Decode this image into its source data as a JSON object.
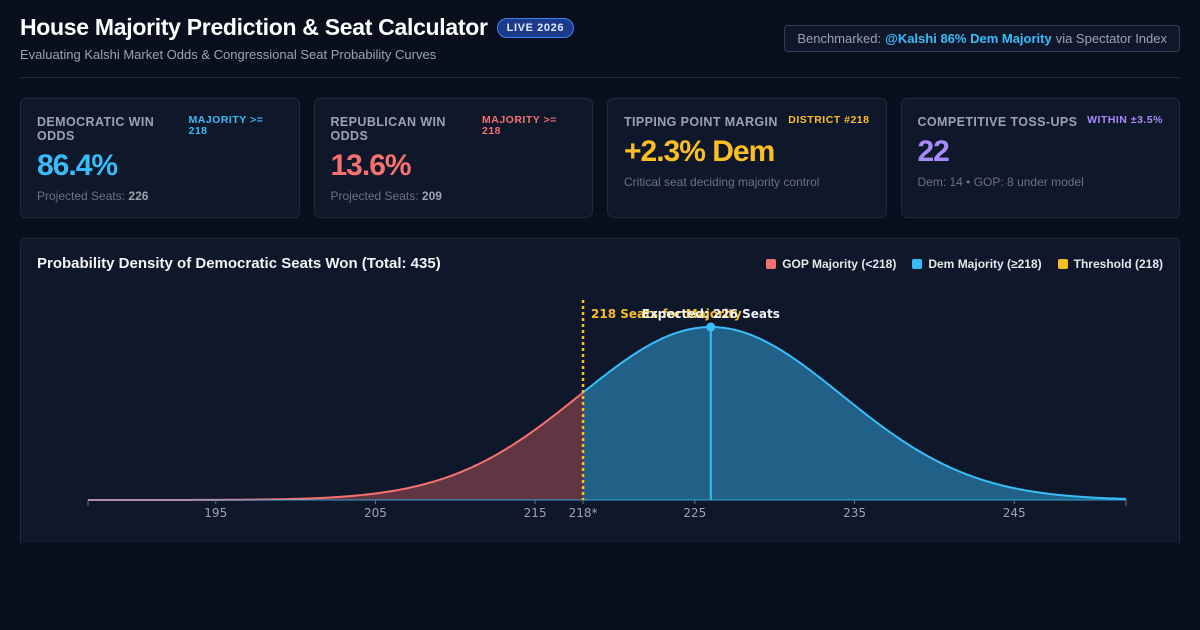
{
  "header": {
    "title": "House Majority Prediction & Seat Calculator",
    "live_badge": "LIVE 2026",
    "subtitle": "Evaluating Kalshi Market Odds & Congressional Seat Probability Curves",
    "benchmark_prefix": "Benchmarked:",
    "benchmark_highlight": "@Kalshi 86% Dem Majority",
    "benchmark_suffix": "via Spectator Index"
  },
  "cards": [
    {
      "label": "DEMOCRATIC WIN ODDS",
      "badge": "MAJORITY >= 218",
      "value": "86.4%",
      "note_label": "Projected Seats:",
      "note_value": "226",
      "color": "#38bdf8"
    },
    {
      "label": "REPUBLICAN WIN ODDS",
      "badge": "MAJORITY >= 218",
      "value": "13.6%",
      "note_label": "Projected Seats:",
      "note_value": "209",
      "color": "#f87171"
    },
    {
      "label": "TIPPING POINT MARGIN",
      "badge": "DISTRICT #218",
      "value": "+2.3% Dem",
      "note_label": "Critical seat deciding majority control",
      "color": "#fbbf24"
    },
    {
      "label": "COMPETITIVE TOSS-UPS",
      "badge": "WITHIN ±3.5%",
      "value": "22",
      "note_label": "Dem: 14 • GOP: 8 under model",
      "color": "#a78bfa"
    }
  ],
  "chart": {
    "title": "Probability Density of Democratic Seats Won (Total: 435)",
    "legend": [
      {
        "label": "GOP Majority (<218)",
        "color": "#f87171"
      },
      {
        "label": "Dem Majority (≥218)",
        "color": "#38bdf8"
      },
      {
        "label": "Threshold (218)",
        "color": "#fbbf24"
      }
    ]
  },
  "chart_data": {
    "type": "area",
    "title": "Probability Density of Democratic Seats Won (Total: 435)",
    "distribution": {
      "mean": 226,
      "sd": 8.2
    },
    "xlim": [
      187,
      252
    ],
    "x_ticks": [
      195,
      205,
      215,
      218,
      225,
      235,
      245
    ],
    "x_tick_labels": [
      "195",
      "205",
      "215",
      "218*",
      "225",
      "235",
      "245"
    ],
    "threshold": {
      "x": 218,
      "label": "218 Seats for Majority",
      "color": "#fbbf24"
    },
    "expected": {
      "x": 226,
      "label": "Expected: 226 Seats",
      "color": "#38bdf8"
    },
    "series": [
      {
        "name": "GOP Majority (<218)",
        "range": [
          187,
          218
        ],
        "color": "#f87171"
      },
      {
        "name": "Dem Majority (≥218)",
        "range": [
          218,
          252
        ],
        "color": "#38bdf8"
      }
    ]
  }
}
